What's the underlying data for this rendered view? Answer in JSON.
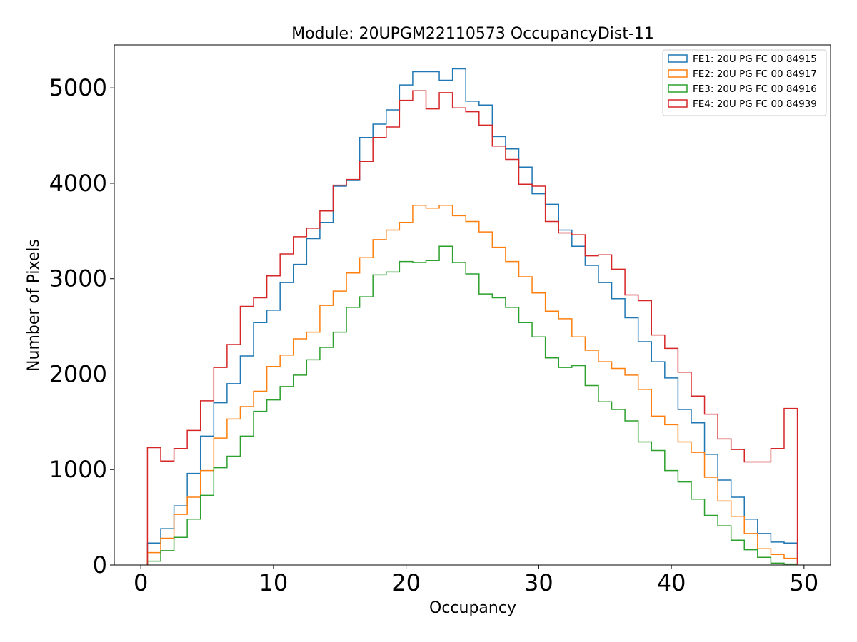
{
  "chart_data": {
    "type": "histogram",
    "title": "Module: 20UPGM22110573 OccupancyDist-11",
    "xlabel": "Occupancy",
    "ylabel": "Number of Pixels",
    "xlim": [
      -2,
      52
    ],
    "ylim": [
      0,
      5450
    ],
    "xticks": [
      0,
      10,
      20,
      30,
      40,
      50
    ],
    "yticks": [
      0,
      1000,
      2000,
      3000,
      4000,
      5000
    ],
    "grid": false,
    "legend_position": "top-right",
    "bin_edges_start": 0.5,
    "bin_width": 1,
    "series": [
      {
        "name": "FE1: 20U PG FC 00 84915",
        "color": "#1f77b4",
        "values": [
          230,
          380,
          620,
          960,
          1350,
          1700,
          1900,
          2190,
          2540,
          2670,
          2960,
          3150,
          3420,
          3590,
          3970,
          4030,
          4480,
          4620,
          4770,
          5030,
          5170,
          5170,
          5080,
          5200,
          4860,
          4820,
          4490,
          4360,
          4170,
          3890,
          3780,
          3510,
          3340,
          3140,
          2960,
          2790,
          2590,
          2340,
          2130,
          1960,
          1630,
          1490,
          1160,
          890,
          710,
          480,
          330,
          240,
          230
        ]
      },
      {
        "name": "FE2: 20U PG FC 00 84917",
        "color": "#ff7f0e",
        "values": [
          130,
          280,
          530,
          710,
          990,
          1330,
          1530,
          1660,
          1820,
          2080,
          2200,
          2370,
          2440,
          2720,
          2870,
          3060,
          3220,
          3410,
          3510,
          3590,
          3770,
          3740,
          3770,
          3660,
          3600,
          3490,
          3330,
          3180,
          3020,
          2850,
          2660,
          2580,
          2390,
          2250,
          2130,
          2060,
          1990,
          1840,
          1560,
          1470,
          1290,
          1180,
          920,
          670,
          510,
          330,
          170,
          110,
          70
        ]
      },
      {
        "name": "FE3: 20U PG FC 00 84916",
        "color": "#2ca02c",
        "values": [
          40,
          150,
          290,
          480,
          730,
          1020,
          1140,
          1350,
          1610,
          1730,
          1870,
          1990,
          2150,
          2280,
          2440,
          2700,
          2810,
          3040,
          3070,
          3180,
          3170,
          3190,
          3340,
          3170,
          3050,
          2840,
          2800,
          2700,
          2540,
          2390,
          2170,
          2070,
          2090,
          1880,
          1710,
          1630,
          1510,
          1290,
          1200,
          990,
          870,
          690,
          520,
          410,
          260,
          160,
          80,
          20,
          10
        ]
      },
      {
        "name": "FE4: 20U PG FC 00 84939",
        "color": "#d62728",
        "values": [
          1230,
          1090,
          1220,
          1410,
          1720,
          2070,
          2310,
          2710,
          2800,
          3030,
          3260,
          3440,
          3530,
          3710,
          3980,
          4040,
          4230,
          4480,
          4590,
          4870,
          4970,
          4780,
          4950,
          4790,
          4750,
          4610,
          4390,
          4250,
          3990,
          3970,
          3600,
          3480,
          3460,
          3240,
          3250,
          3100,
          2830,
          2770,
          2410,
          2270,
          2020,
          1770,
          1580,
          1320,
          1210,
          1080,
          1080,
          1220,
          1640
        ]
      }
    ]
  }
}
